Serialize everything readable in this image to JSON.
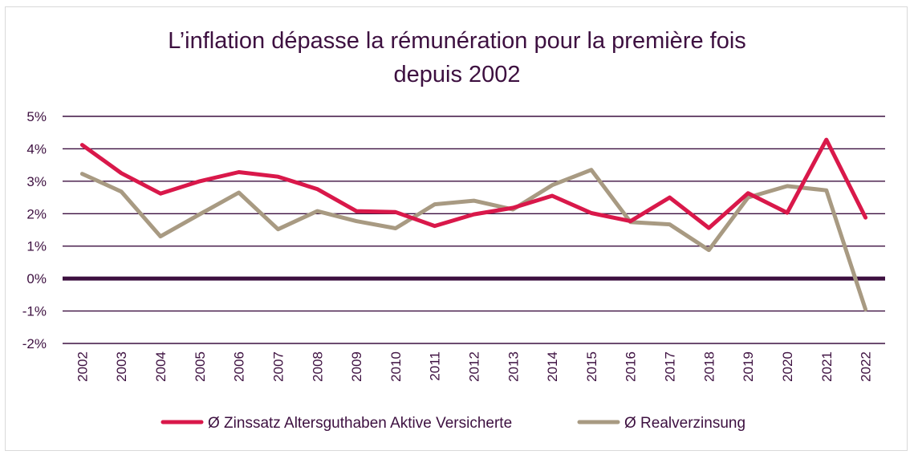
{
  "chart_data": {
    "type": "line",
    "title_line1": "L’inflation dépasse la rémunération pour la première fois",
    "title_line2": "depuis 2002",
    "categories": [
      "2002",
      "2003",
      "2004",
      "2005",
      "2006",
      "2007",
      "2008",
      "2009",
      "2010",
      "2011",
      "2012",
      "2013",
      "2014",
      "2015",
      "2016",
      "2017",
      "2018",
      "2019",
      "2020",
      "2021",
      "2022"
    ],
    "y_ticks": [
      "5%",
      "4%",
      "3%",
      "2%",
      "1%",
      "0%",
      "-1%",
      "-2%"
    ],
    "ylim": [
      -2,
      5
    ],
    "grid": true,
    "legend_position": "bottom",
    "series": [
      {
        "name": "Ø Zinssatz Altersguthaben Aktive Versicherte",
        "color": "#d9184a",
        "values": [
          4.12,
          3.25,
          2.62,
          3.0,
          3.28,
          3.14,
          2.76,
          2.08,
          2.05,
          1.62,
          1.98,
          2.18,
          2.55,
          2.02,
          1.77,
          2.5,
          1.56,
          2.63,
          2.03,
          4.28,
          1.88
        ]
      },
      {
        "name": "Ø Realverzinsung",
        "color": "#a89a82",
        "values": [
          3.23,
          2.68,
          1.3,
          1.98,
          2.65,
          1.52,
          2.08,
          1.77,
          1.55,
          2.29,
          2.4,
          2.13,
          2.88,
          3.35,
          1.74,
          1.67,
          0.88,
          2.5,
          2.85,
          2.72,
          -0.95
        ]
      }
    ],
    "zero_line_color": "#3d1040",
    "grid_color": "#3d1040"
  }
}
